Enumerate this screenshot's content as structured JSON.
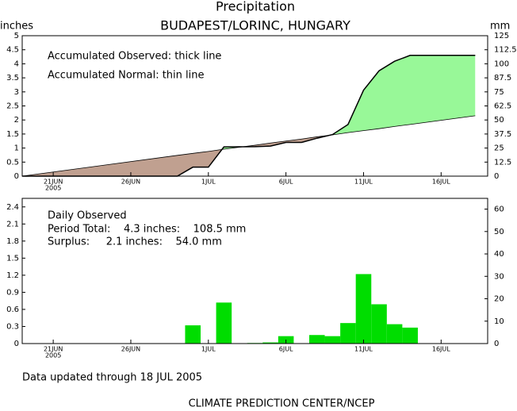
{
  "chart_data": [
    {
      "type": "area",
      "title": "Precipitation",
      "subtitle": "BUDAPEST/LORINC, HUNGARY",
      "ylabel": "inches",
      "y2label": "mm",
      "annotations": [
        "Accumulated Observed: thick line",
        "Accumulated Normal: thin line"
      ],
      "x": [
        19,
        29,
        30,
        31,
        32,
        34,
        35,
        36,
        37,
        38,
        39,
        40,
        41,
        42,
        43,
        44,
        48.2
      ],
      "series": [
        {
          "color": "#000000",
          "width": 1.5,
          "values": [
            0,
            0,
            0.32,
            0.32,
            1.04,
            1.05,
            1.07,
            1.2,
            1.2,
            1.35,
            1.48,
            1.84,
            3.06,
            3.75,
            4.09,
            4.3,
            4.3
          ]
        },
        {
          "color": "#000000",
          "width": 0.8,
          "values": [
            0,
            0.74,
            0.81,
            0.88,
            0.96,
            1.1,
            1.18,
            1.25,
            1.32,
            1.4,
            1.47,
            1.55,
            1.62,
            1.69,
            1.77,
            1.84,
            2.15
          ]
        }
      ],
      "fill_surplus": "#98f898",
      "fill_deficit": "#c0a090",
      "xlim": [
        19,
        49
      ],
      "xticks": [
        {
          "value": 21,
          "label": "21JUN"
        },
        {
          "value": 26,
          "label": "26JUN"
        },
        {
          "value": 31,
          "label": "1JUL"
        },
        {
          "value": 36,
          "label": "6JUL"
        },
        {
          "value": 41,
          "label": "11JUL"
        },
        {
          "value": 46,
          "label": "16JUL"
        }
      ],
      "year_label": "2005",
      "ylim": [
        0,
        5
      ],
      "yticks": [
        0,
        0.5,
        1,
        1.5,
        2,
        2.5,
        3,
        3.5,
        4,
        4.5,
        5
      ],
      "y2lim": [
        0,
        125
      ],
      "y2ticks": [
        0,
        12.5,
        25,
        37.5,
        50,
        62.5,
        75,
        87.5,
        100,
        112.5,
        125
      ]
    },
    {
      "type": "bar",
      "annotations": [
        "Daily Observed",
        "Period Total:    4.3 inches:    108.5 mm",
        "Surplus:     2.1 inches:    54.0 mm"
      ],
      "x": [
        30,
        32,
        34,
        35,
        36,
        38,
        39,
        40,
        41,
        42,
        43,
        44
      ],
      "values": [
        0.32,
        0.72,
        0.01,
        0.02,
        0.13,
        0.15,
        0.13,
        0.36,
        1.22,
        0.69,
        0.34,
        0.28
      ],
      "color": "#00dd00",
      "xlim": [
        19,
        49
      ],
      "xticks": [
        {
          "value": 21,
          "label": "21JUN"
        },
        {
          "value": 26,
          "label": "26JUN"
        },
        {
          "value": 31,
          "label": "1JUL"
        },
        {
          "value": 36,
          "label": "6JUL"
        },
        {
          "value": 41,
          "label": "11JUL"
        },
        {
          "value": 46,
          "label": "16JUL"
        }
      ],
      "year_label": "2005",
      "ylim": [
        0,
        2.55
      ],
      "yticks": [
        0,
        0.3,
        0.6,
        0.9,
        1.2,
        1.5,
        1.8,
        2.1,
        2.4
      ],
      "y2lim": [
        0,
        64.8
      ],
      "y2ticks": [
        0,
        10,
        20,
        30,
        40,
        50,
        60
      ]
    }
  ],
  "footer": {
    "updated": "Data updated through 18 JUL 2005",
    "credit": "CLIMATE PREDICTION CENTER/NCEP"
  }
}
